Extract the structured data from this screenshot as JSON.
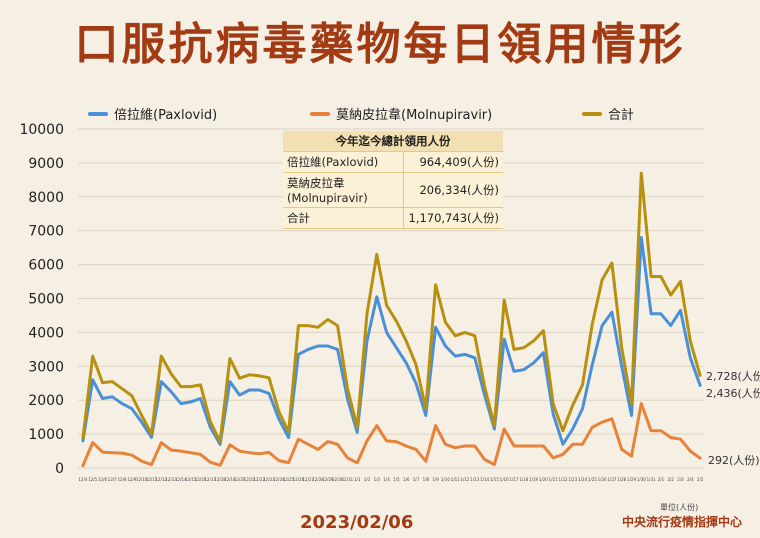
{
  "title": "口服抗病毒藥物每日領用情形",
  "date": "2023/02/06",
  "source": "中央流行疫情指揮中心",
  "unit_note": "單位(人份)",
  "summary": {
    "header": "今年迄今總計領用人份",
    "rows": [
      {
        "label": "倍拉維(Paxlovid)",
        "value": "964,409(人份)"
      },
      {
        "label": "莫納皮拉韋(Molnupiravir)",
        "value": "206,334(人份)"
      },
      {
        "label": "合計",
        "value": "1,170,743(人份)"
      }
    ]
  },
  "end_labels": {
    "total": "2,728(人份)",
    "paxlovid": "2,436(人份)",
    "molnupiravir": "292(人份)"
  },
  "colors": {
    "paxlovid": "#4a90d9",
    "molnupiravir": "#e8823a",
    "total": "#b8900f",
    "title": "#a23a14"
  },
  "chart_data": {
    "type": "line",
    "ylim": [
      0,
      10000
    ],
    "yticks": [
      0,
      1000,
      2000,
      3000,
      4000,
      5000,
      6000,
      7000,
      8000,
      9000,
      10000
    ],
    "grid": true,
    "legend_position": "top",
    "categories": [
      "12/4",
      "12/5",
      "12/6",
      "12/7",
      "12/8",
      "12/9",
      "12/10",
      "12/11",
      "12/12",
      "12/13",
      "12/14",
      "12/15",
      "12/16",
      "12/17",
      "12/18",
      "12/19",
      "12/20",
      "12/21",
      "12/22",
      "12/23",
      "12/24",
      "12/25",
      "12/26",
      "12/27",
      "12/28",
      "12/29",
      "12/30",
      "12/31",
      "1/1",
      "1/2",
      "1/3",
      "1/4",
      "1/5",
      "1/6",
      "1/7",
      "1/8",
      "1/9",
      "1/10",
      "1/11",
      "1/12",
      "1/13",
      "1/14",
      "1/15",
      "1/16",
      "1/17",
      "1/18",
      "1/19",
      "1/20",
      "1/21",
      "1/22",
      "1/23",
      "1/24",
      "1/25",
      "1/26",
      "1/27",
      "1/28",
      "1/29",
      "1/30",
      "1/31",
      "2/1",
      "2/2",
      "2/3",
      "2/4",
      "2/5"
    ],
    "series": [
      {
        "name": "倍拉維(Paxlovid)",
        "color": "#4a90d9",
        "values": [
          800,
          2600,
          2050,
          2100,
          1900,
          1750,
          1350,
          900,
          2550,
          2250,
          1900,
          1950,
          2050,
          1200,
          700,
          2550,
          2150,
          2300,
          2300,
          2200,
          1450,
          900,
          3350,
          3500,
          3600,
          3600,
          3500,
          2050,
          1050,
          3750,
          5050,
          4000,
          3550,
          3100,
          2500,
          1550,
          4150,
          3600,
          3300,
          3350,
          3250,
          2150,
          1150,
          3800,
          2850,
          2900,
          3100,
          3400,
          1600,
          700,
          1150,
          1750,
          3050,
          4200,
          4600,
          3000,
          1550,
          6800,
          4550,
          4550,
          4200,
          4650,
          3250,
          2436
        ]
      },
      {
        "name": "莫納皮拉韋(Molnupiravir)",
        "color": "#e8823a",
        "values": [
          70,
          750,
          470,
          450,
          440,
          380,
          200,
          100,
          750,
          530,
          500,
          450,
          400,
          170,
          80,
          680,
          500,
          450,
          420,
          460,
          220,
          160,
          850,
          700,
          550,
          780,
          700,
          300,
          150,
          800,
          1250,
          800,
          780,
          650,
          550,
          200,
          1250,
          700,
          600,
          650,
          650,
          250,
          100,
          1150,
          650,
          650,
          650,
          650,
          300,
          400,
          700,
          700,
          1200,
          1350,
          1450,
          550,
          350,
          1900,
          1100,
          1100,
          900,
          850,
          500,
          292
        ]
      },
      {
        "name": "合計",
        "color": "#b8900f",
        "values": [
          870,
          3300,
          2520,
          2550,
          2340,
          2130,
          1550,
          1000,
          3300,
          2780,
          2400,
          2400,
          2450,
          1370,
          780,
          3230,
          2650,
          2750,
          2720,
          2660,
          1670,
          1060,
          4200,
          4200,
          4150,
          4380,
          4200,
          2350,
          1200,
          4550,
          6300,
          4800,
          4330,
          3750,
          3050,
          1750,
          5400,
          4300,
          3900,
          4000,
          3900,
          2400,
          1250,
          4950,
          3500,
          3550,
          3750,
          4050,
          1900,
          1100,
          1850,
          2450,
          4250,
          5550,
          6050,
          3550,
          1900,
          8700,
          5650,
          5650,
          5100,
          5500,
          3750,
          2728
        ]
      }
    ]
  }
}
